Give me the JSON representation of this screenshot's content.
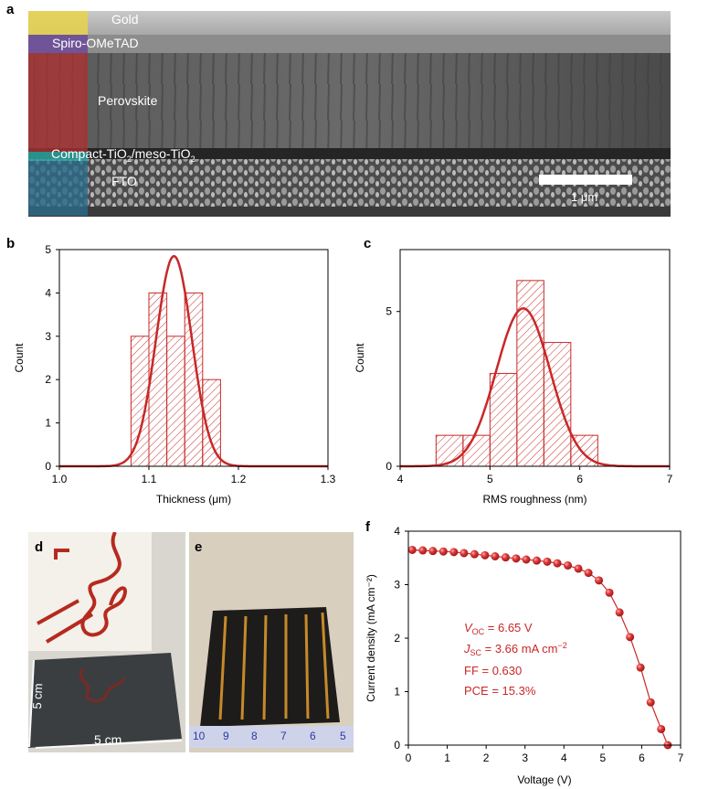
{
  "figure": {
    "panels": {
      "a": "a",
      "b": "b",
      "c": "c",
      "d": "d",
      "e": "e",
      "f": "f"
    }
  },
  "panel_a": {
    "layers": {
      "gold": "Gold",
      "spiro": "Spiro-OMeTAD",
      "perovskite": "Perovskite",
      "tio2_main": "Compact-TiO",
      "tio2_sub1": "2",
      "tio2_mid": "/meso-TiO",
      "tio2_sub2": "2",
      "fto": "FTO"
    },
    "scale_bar": "1 μm",
    "colors": {
      "gold": "#e8d44a",
      "spiro": "#6a4a9a",
      "perovskite": "#b03030",
      "tio2": "#2aa3a0",
      "fto": "#2a6a8a"
    }
  },
  "panel_d": {
    "label_vertical": "5 cm",
    "label_horizontal": "5 cm"
  },
  "panel_e": {
    "ruler_ticks": [
      "10",
      "9",
      "8",
      "7",
      "6",
      "5"
    ]
  },
  "chart_data": [
    {
      "panel": "b",
      "type": "bar",
      "xlabel": "Thickness (μm)",
      "ylabel": "Count",
      "xlim": [
        1.0,
        1.3
      ],
      "ylim": [
        0,
        5
      ],
      "xticks": [
        "1.0",
        "1.1",
        "1.2",
        "1.3"
      ],
      "yticks": [
        "0",
        "1",
        "2",
        "3",
        "4",
        "5"
      ],
      "bins": [
        {
          "x0": 1.08,
          "x1": 1.1,
          "count": 3
        },
        {
          "x0": 1.1,
          "x1": 1.12,
          "count": 4
        },
        {
          "x0": 1.12,
          "x1": 1.14,
          "count": 3
        },
        {
          "x0": 1.14,
          "x1": 1.16,
          "count": 4
        },
        {
          "x0": 1.16,
          "x1": 1.18,
          "count": 2
        }
      ],
      "fit": {
        "type": "gaussian",
        "mean": 1.128,
        "sigma": 0.02,
        "peak": 4.85
      },
      "color": "#c82828"
    },
    {
      "panel": "c",
      "type": "bar",
      "xlabel": "RMS roughness (nm)",
      "ylabel": "Count",
      "xlim": [
        4,
        7
      ],
      "ylim": [
        0,
        7
      ],
      "xticks": [
        "4",
        "5",
        "6",
        "7"
      ],
      "yticks": [
        "0",
        "5"
      ],
      "bins": [
        {
          "x0": 4.4,
          "x1": 4.7,
          "count": 1
        },
        {
          "x0": 4.7,
          "x1": 5.0,
          "count": 1
        },
        {
          "x0": 5.0,
          "x1": 5.3,
          "count": 3
        },
        {
          "x0": 5.3,
          "x1": 5.6,
          "count": 6
        },
        {
          "x0": 5.6,
          "x1": 5.9,
          "count": 4
        },
        {
          "x0": 5.9,
          "x1": 6.2,
          "count": 1
        }
      ],
      "fit": {
        "type": "gaussian",
        "mean": 5.37,
        "sigma": 0.3,
        "peak": 5.1
      },
      "color": "#c82828"
    },
    {
      "panel": "f",
      "type": "line",
      "xlabel": "Voltage (V)",
      "ylabel": "Current density (mA cm⁻²)",
      "xlim": [
        0,
        7
      ],
      "ylim": [
        0,
        4
      ],
      "xticks": [
        "0",
        "1",
        "2",
        "3",
        "4",
        "5",
        "6",
        "7"
      ],
      "yticks": [
        "0",
        "1",
        "2",
        "3",
        "4"
      ],
      "x": [
        0.1,
        0.37,
        0.63,
        0.9,
        1.17,
        1.43,
        1.7,
        1.97,
        2.23,
        2.5,
        2.77,
        3.03,
        3.3,
        3.57,
        3.83,
        4.1,
        4.37,
        4.63,
        4.9,
        5.17,
        5.43,
        5.7,
        5.97,
        6.23,
        6.5,
        6.67
      ],
      "y": [
        3.65,
        3.64,
        3.63,
        3.62,
        3.61,
        3.59,
        3.57,
        3.55,
        3.53,
        3.51,
        3.49,
        3.47,
        3.45,
        3.43,
        3.4,
        3.36,
        3.3,
        3.22,
        3.08,
        2.85,
        2.48,
        2.02,
        1.45,
        0.8,
        0.3,
        0.0
      ],
      "annotations": {
        "voc_sym": "V",
        "voc_sub": "OC",
        "voc_val": " = 6.65 V",
        "jsc_sym": "J",
        "jsc_sub": "SC",
        "jsc_val": " = 3.66 mA cm",
        "jsc_sup": "−2",
        "ff": "FF = 0.630",
        "pce": "PCE = 15.3%"
      },
      "color": "#c82828"
    }
  ]
}
